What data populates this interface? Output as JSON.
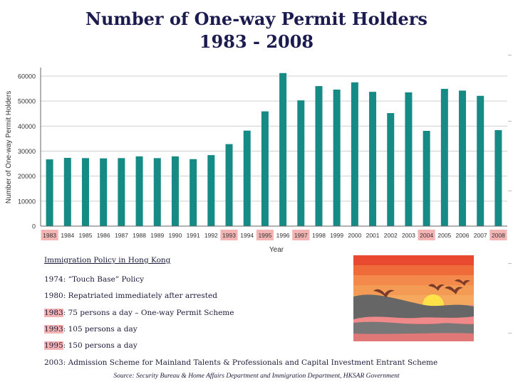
{
  "title_line1": "Number of One-way Permit Holders",
  "title_line2": "1983 - 2008",
  "chart_data": {
    "type": "bar",
    "title": "Number of One-way Permit Holders 1983 - 2008",
    "xlabel": "Year",
    "ylabel": "Number of One-way Permit Holders",
    "ylim": [
      0,
      60000
    ],
    "yticks": [
      0,
      10000,
      20000,
      30000,
      40000,
      50000,
      60000
    ],
    "grid": true,
    "categories": [
      "1983",
      "1984",
      "1985",
      "1986",
      "1987",
      "1988",
      "1989",
      "1990",
      "1991",
      "1992",
      "1993",
      "1994",
      "1995",
      "1996",
      "1997",
      "1998",
      "1999",
      "2000",
      "2001",
      "2002",
      "2003",
      "2004",
      "2005",
      "2006",
      "2007",
      "2008"
    ],
    "values": [
      26700,
      27300,
      27200,
      27100,
      27200,
      27900,
      27200,
      27900,
      26800,
      28400,
      32800,
      38200,
      45900,
      61200,
      50300,
      56000,
      54600,
      57500,
      53700,
      45200,
      53500,
      38100,
      54900,
      54200,
      52100,
      38400
    ],
    "highlighted_categories": [
      "1983",
      "1993",
      "1995",
      "1997",
      "2004",
      "2008"
    ],
    "bar_color": "#168a84",
    "highlight_color": "#f4b4b4"
  },
  "policy": {
    "heading": "Immigration Policy in Hong Kong",
    "items": [
      {
        "year": "1974",
        "text": ": “Touch Base” Policy",
        "highlight": false
      },
      {
        "year": "1980",
        "text": ": Repatriated immediately after arrested",
        "highlight": false
      },
      {
        "year": "1983",
        "text": ": 75 persons a day – One-way Permit Scheme",
        "highlight": true
      },
      {
        "year": "1993",
        "text": ": 105 persons a day",
        "highlight": true
      },
      {
        "year": "1995",
        "text": ": 150 persons a day",
        "highlight": true
      },
      {
        "year": "2003",
        "text": ": Admission Scheme for Mainland Talents & Professionals and Capital Investment Entrant Scheme",
        "highlight": false
      }
    ]
  },
  "source": "Source: Security Bureau & Home Affairs Department and Immigration Department, HKSAR Government"
}
